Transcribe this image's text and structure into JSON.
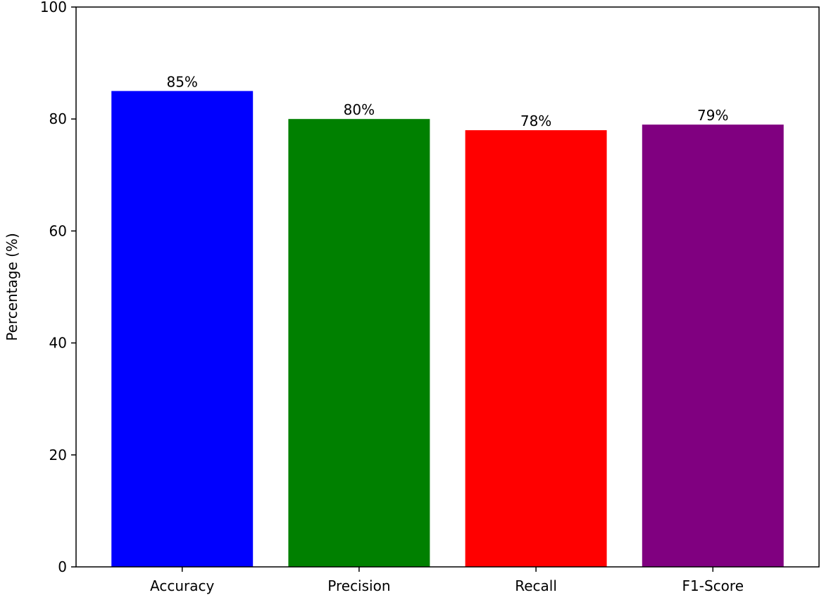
{
  "chart_data": {
    "type": "bar",
    "title": "",
    "xlabel": "",
    "ylabel": "Percentage (%)",
    "ylim": [
      0,
      100
    ],
    "yticks": [
      "0",
      "20",
      "40",
      "60",
      "80",
      "100"
    ],
    "categories": [
      "Accuracy",
      "Precision",
      "Recall",
      "F1-Score"
    ],
    "values": [
      85,
      80,
      78,
      79
    ],
    "data_labels": [
      "85%",
      "80%",
      "78%",
      "79%"
    ],
    "colors": [
      "#0000ff",
      "#008000",
      "#ff0000",
      "#800080"
    ],
    "grid": false,
    "legend": "none"
  }
}
